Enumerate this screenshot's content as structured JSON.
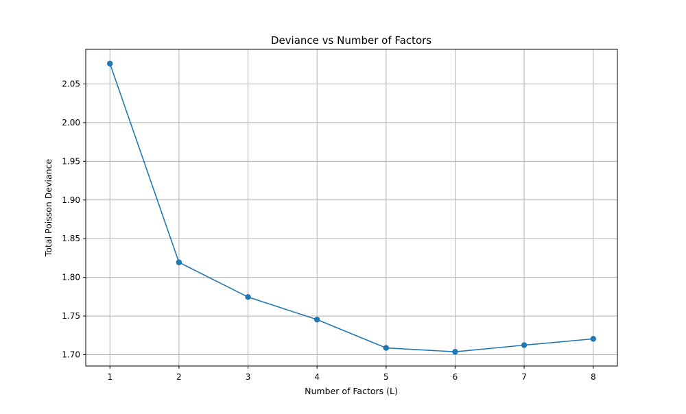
{
  "chart_data": {
    "type": "line",
    "title": "Deviance vs Number of Factors",
    "xlabel": "Number of Factors (L)",
    "ylabel": "Total Poisson Deviance",
    "x": [
      1,
      2,
      3,
      4,
      5,
      6,
      7,
      8
    ],
    "series": [
      {
        "values": [
          2.0763,
          1.8194,
          1.7746,
          1.7454,
          1.7088,
          1.7038,
          1.7124,
          1.7205
        ]
      }
    ],
    "xlim": [
      0.65,
      8.35
    ],
    "ylim": [
      1.6854,
      2.0947
    ],
    "xticks": [
      "1",
      "2",
      "3",
      "4",
      "5",
      "6",
      "7",
      "8"
    ],
    "yticks": [
      "1.70",
      "1.75",
      "1.80",
      "1.85",
      "1.90",
      "1.95",
      "2.00",
      "2.05"
    ],
    "grid": true,
    "line_color": "#1f77b4",
    "grid_color": "#b0b0b0",
    "marker": "circle"
  }
}
